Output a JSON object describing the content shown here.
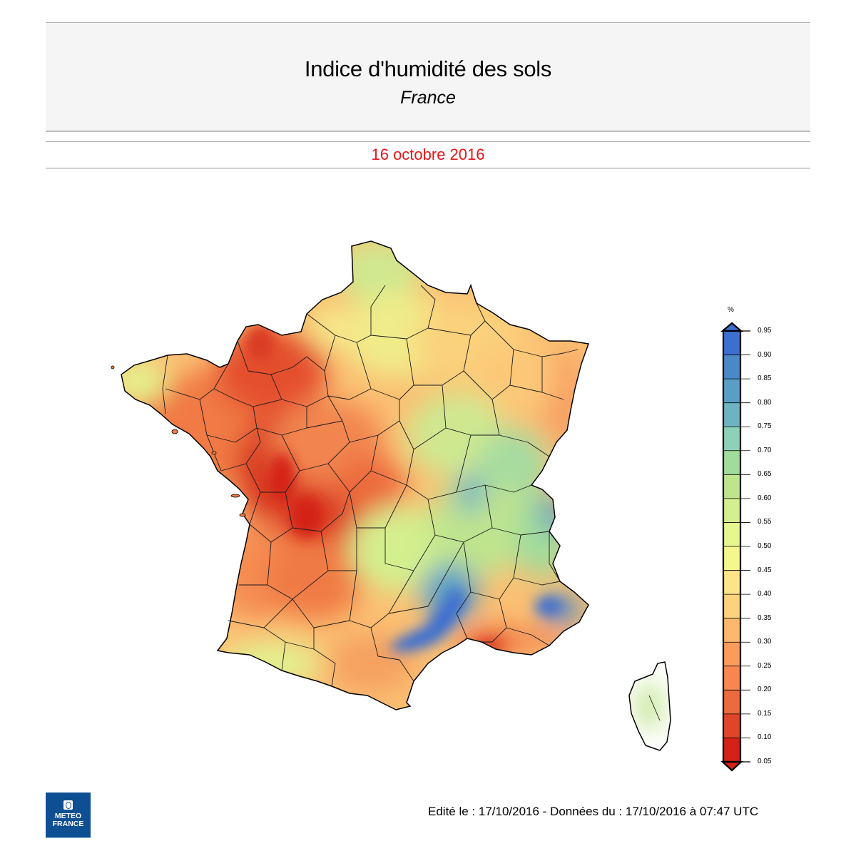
{
  "header": {
    "title": "Indice d'humidité des sols",
    "subtitle": "France"
  },
  "date_bar": {
    "date": "16 octobre 2016",
    "color": "#e8161a"
  },
  "legend": {
    "unit": "%",
    "ticks": [
      "0.95",
      "0.90",
      "0.85",
      "0.80",
      "0.75",
      "0.70",
      "0.65",
      "0.60",
      "0.55",
      "0.50",
      "0.45",
      "0.40",
      "0.35",
      "0.30",
      "0.25",
      "0.20",
      "0.15",
      "0.10",
      "0.05"
    ],
    "colors_top_to_bottom": [
      "#3d6fd0",
      "#4a88c8",
      "#5a9ec6",
      "#6eb3c2",
      "#8dd1b8",
      "#a2dc9c",
      "#bfe48e",
      "#d4ef8e",
      "#e6f78f",
      "#f4f78e",
      "#fbe48a",
      "#fdd27e",
      "#fdb86c",
      "#fc9c5c",
      "#f98650",
      "#ec6a3d",
      "#e0452c",
      "#d42218"
    ],
    "over_color": "#3d6fd0",
    "under_color": "#d42218"
  },
  "footer": {
    "edit_info": "Edité le : 17/10/2016 - Données du : 17/10/2016 à 07:47 UTC",
    "logo_line1": "METEO",
    "logo_line2": "FRANCE"
  },
  "chart_data": {
    "type": "heatmap",
    "title": "Indice d'humidité des sols",
    "subtitle": "France",
    "date": "16 octobre 2016",
    "colorbar": {
      "label": "%",
      "min": 0.05,
      "max": 0.95,
      "step": 0.05,
      "extend": "both",
      "ticks": [
        0.05,
        0.1,
        0.15,
        0.2,
        0.25,
        0.3,
        0.35,
        0.4,
        0.45,
        0.5,
        0.55,
        0.6,
        0.65,
        0.7,
        0.75,
        0.8,
        0.85,
        0.9,
        0.95
      ]
    },
    "regions_approx": [
      {
        "area": "Bretagne (Finistère)",
        "value": 0.5
      },
      {
        "area": "Bretagne / Pays de la Loire",
        "value": 0.22
      },
      {
        "area": "Normandie (Manche / Calvados / Orne)",
        "value": 0.15
      },
      {
        "area": "Poitou-Charentes / Limousin",
        "value": 0.12
      },
      {
        "area": "Centre",
        "value": 0.28
      },
      {
        "area": "Nord-Pas-de-Calais",
        "value": 0.52
      },
      {
        "area": "Picardie / Île-de-France",
        "value": 0.4
      },
      {
        "area": "Champagne-Ardenne / Lorraine",
        "value": 0.38
      },
      {
        "area": "Alsace",
        "value": 0.3
      },
      {
        "area": "Bourgogne / Franche-Comté",
        "value": 0.58
      },
      {
        "area": "Rhône-Alpes",
        "value": 0.68
      },
      {
        "area": "Alpes (Savoie)",
        "value": 0.8
      },
      {
        "area": "Cévennes / Hérault / Gard",
        "value": 0.92
      },
      {
        "area": "Alpes-Maritimes",
        "value": 0.88
      },
      {
        "area": "Bouches-du-Rhône / Var",
        "value": 0.22
      },
      {
        "area": "Aquitaine",
        "value": 0.33
      },
      {
        "area": "Pyrénées-Atlantiques",
        "value": 0.5
      },
      {
        "area": "Midi-Pyrénées",
        "value": 0.3
      },
      {
        "area": "Roussillon",
        "value": 0.25
      },
      {
        "area": "Corse (interior)",
        "value": 0.6
      },
      {
        "area": "Corse (coast)",
        "value": 0.3
      }
    ]
  }
}
